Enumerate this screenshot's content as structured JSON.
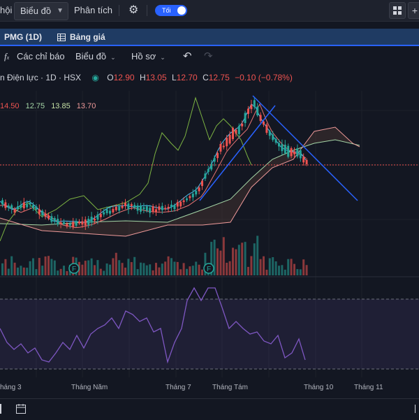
{
  "topbar": {
    "partial_left": "hội",
    "chart_dropdown": "Biểu đồ",
    "analysis": "Phân tích",
    "theme_toggle": "Tối",
    "icons": [
      "gear-icon",
      "grid-icon",
      "plus-icon"
    ]
  },
  "tabs": {
    "symbol": "PMG (1D)",
    "price_board": "Bảng giá",
    "colors": {
      "bar": "#1f3b63",
      "active": "#2962ff"
    }
  },
  "toolbar": {
    "indicators": "Các chỉ báo",
    "chart_type": "Biểu đồ",
    "profile": "Hồ sơ",
    "icons": [
      "fx-icon",
      "undo-icon",
      "redo-icon"
    ]
  },
  "legend": {
    "title": "n Điện lực · 1D · HSX",
    "open_label": "O",
    "open": "12.90",
    "high_label": "H",
    "high": "13.05",
    "low_label": "L",
    "low": "12.70",
    "close_label": "C",
    "close": "12.75",
    "change": "−0.10 (−0.78%)"
  },
  "ma_legend": {
    "v1": "14.50",
    "v2": "12.75",
    "v3": "13.85",
    "v4": "13.70"
  },
  "xaxis": {
    "labels": [
      "háng 3",
      "Tháng Năm",
      "Tháng 7",
      "Tháng Tám",
      "Tháng 10",
      "Tháng 11"
    ]
  },
  "markers": [
    "F",
    "F"
  ],
  "colors": {
    "up": "#26a69a",
    "down": "#ef5350",
    "rsi": "#7e57c2",
    "trend": "#2962ff",
    "background": "#131722"
  }
}
